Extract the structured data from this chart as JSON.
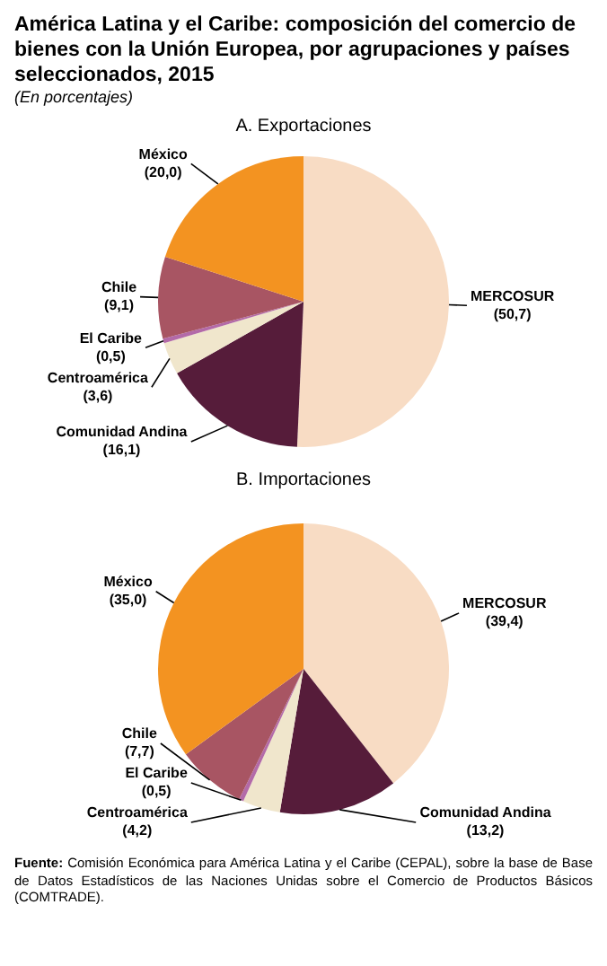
{
  "chart_data": [
    {
      "type": "pie",
      "title": "América Latina y el Caribe: composición del comercio de bienes con la Unión Europea, por agrupaciones y países seleccionados, 2015",
      "subtitle": "(En porcentajes)",
      "annotations": [
        "A. Exportaciones"
      ],
      "categories": [
        "MERCOSUR",
        "Comunidad Andina",
        "Centroamérica",
        "El Caribe",
        "Chile",
        "México"
      ],
      "values": [
        50.7,
        16.1,
        3.6,
        0.5,
        9.1,
        20.0
      ],
      "value_labels": [
        "(50,7)",
        "(16,1)",
        "(3,6)",
        "(0,5)",
        "(9,1)",
        "(20,0)"
      ],
      "colors": [
        "#f8dcc4",
        "#561c3a",
        "#f0e6cc",
        "#b36aa8",
        "#a85563",
        "#f39321"
      ],
      "legend": false
    },
    {
      "type": "pie",
      "annotations": [
        "B. Importaciones",
        "Fuente: Comisión Económica para América Latina y el Caribe (CEPAL), sobre la base de Base de Datos Estadísticos de las Naciones Unidas sobre el Comercio de Productos Básicos (COMTRADE)."
      ],
      "categories": [
        "MERCOSUR",
        "Comunidad Andina",
        "Centroamérica",
        "El Caribe",
        "Chile",
        "México"
      ],
      "values": [
        39.4,
        13.2,
        4.2,
        0.5,
        7.7,
        35.0
      ],
      "value_labels": [
        "(39,4)",
        "(13,2)",
        "(4,2)",
        "(0,5)",
        "(7,7)",
        "(35,0)"
      ],
      "colors": [
        "#f8dcc4",
        "#561c3a",
        "#f0e6cc",
        "#b36aa8",
        "#a85563",
        "#f39321"
      ],
      "legend": false
    }
  ]
}
